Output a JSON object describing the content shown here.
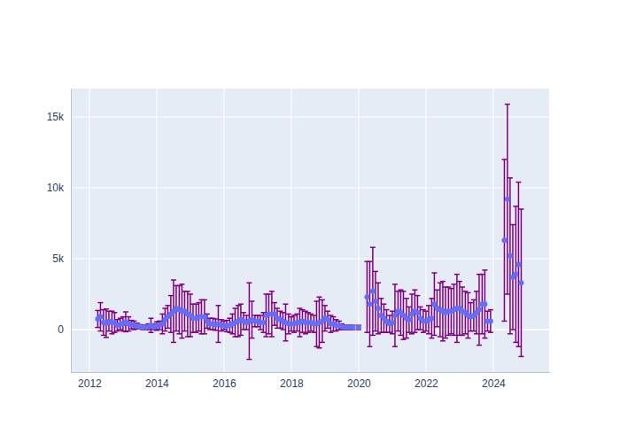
{
  "chart_data": {
    "type": "scatter",
    "x": [
      2012.25,
      2012.33,
      2012.42,
      2012.5,
      2012.58,
      2012.67,
      2012.75,
      2012.83,
      2012.92,
      2013.0,
      2013.08,
      2013.17,
      2013.25,
      2013.33,
      2013.42,
      2013.5,
      2013.58,
      2013.67,
      2013.75,
      2013.83,
      2013.92,
      2014.0,
      2014.08,
      2014.17,
      2014.25,
      2014.33,
      2014.42,
      2014.5,
      2014.58,
      2014.67,
      2014.75,
      2014.83,
      2014.92,
      2015.0,
      2015.08,
      2015.17,
      2015.25,
      2015.33,
      2015.42,
      2015.5,
      2015.58,
      2015.67,
      2015.75,
      2015.83,
      2015.92,
      2016.0,
      2016.08,
      2016.17,
      2016.25,
      2016.33,
      2016.42,
      2016.5,
      2016.58,
      2016.67,
      2016.75,
      2016.83,
      2016.92,
      2017.0,
      2017.08,
      2017.17,
      2017.25,
      2017.33,
      2017.42,
      2017.5,
      2017.58,
      2017.67,
      2017.75,
      2017.83,
      2017.92,
      2018.0,
      2018.08,
      2018.17,
      2018.25,
      2018.33,
      2018.42,
      2018.5,
      2018.58,
      2018.67,
      2018.75,
      2018.83,
      2018.92,
      2019.0,
      2019.08,
      2019.17,
      2019.25,
      2019.33,
      2019.42,
      2019.5,
      2019.58,
      2019.67,
      2019.75,
      2019.83,
      2020.0,
      2020.25,
      2020.33,
      2020.42,
      2020.5,
      2020.58,
      2020.67,
      2020.75,
      2020.83,
      2020.92,
      2021.0,
      2021.08,
      2021.17,
      2021.25,
      2021.33,
      2021.42,
      2021.5,
      2021.58,
      2021.67,
      2021.75,
      2021.83,
      2021.92,
      2022.0,
      2022.08,
      2022.17,
      2022.25,
      2022.33,
      2022.42,
      2022.5,
      2022.58,
      2022.67,
      2022.75,
      2022.83,
      2022.92,
      2023.0,
      2023.08,
      2023.17,
      2023.25,
      2023.33,
      2023.42,
      2023.5,
      2023.58,
      2023.67,
      2023.75,
      2023.83,
      2023.92,
      2024.33,
      2024.42,
      2024.5,
      2024.58,
      2024.67,
      2024.75,
      2024.83
    ],
    "series": [
      {
        "color": "#636efa",
        "marker": "circle",
        "values": [
          750,
          900,
          500,
          450,
          600,
          500,
          500,
          300,
          400,
          400,
          550,
          400,
          350,
          300,
          250,
          200,
          150,
          150,
          200,
          300,
          200,
          250,
          300,
          400,
          700,
          900,
          1100,
          1300,
          1500,
          1400,
          1300,
          1300,
          1100,
          1000,
          800,
          800,
          900,
          900,
          900,
          600,
          400,
          400,
          350,
          400,
          300,
          300,
          250,
          300,
          400,
          500,
          600,
          700,
          600,
          500,
          600,
          700,
          600,
          600,
          500,
          500,
          1000,
          1100,
          1100,
          1100,
          800,
          700,
          600,
          500,
          400,
          400,
          400,
          500,
          500,
          600,
          500,
          500,
          500,
          400,
          400,
          500,
          600,
          800,
          700,
          400,
          400,
          300,
          300,
          200,
          150,
          150,
          150,
          150,
          150,
          2300,
          1800,
          2700,
          2000,
          1500,
          1000,
          800,
          600,
          400,
          500,
          1000,
          1300,
          1200,
          1000,
          800,
          700,
          1100,
          1300,
          1200,
          800,
          600,
          600,
          700,
          800,
          1800,
          1500,
          1400,
          1300,
          1200,
          1300,
          1300,
          1400,
          1500,
          1500,
          1300,
          1200,
          1000,
          900,
          1000,
          1200,
          1400,
          1800,
          1800,
          600,
          600,
          6300,
          9200,
          5200,
          3700,
          3900,
          4600,
          3300
        ],
        "error": [
          600,
          1000,
          900,
          1000,
          700,
          800,
          700,
          400,
          400,
          500,
          700,
          500,
          300,
          300,
          200,
          150,
          150,
          150,
          200,
          500,
          200,
          300,
          300,
          700,
          800,
          800,
          1300,
          2200,
          1600,
          1700,
          1900,
          1400,
          1600,
          1500,
          1000,
          1000,
          1000,
          1200,
          1200,
          500,
          400,
          400,
          400,
          1300,
          400,
          300,
          400,
          500,
          700,
          1000,
          1100,
          1100,
          600,
          500,
          2700,
          1300,
          400,
          400,
          500,
          700,
          1500,
          1400,
          1600,
          800,
          700,
          600,
          600,
          1300,
          700,
          500,
          600,
          600,
          1000,
          800,
          800,
          700,
          600,
          600,
          1600,
          1800,
          1500,
          900,
          600,
          600,
          500,
          400,
          300,
          200,
          150,
          150,
          150,
          150,
          150,
          2500,
          3000,
          3100,
          2100,
          1800,
          1200,
          1000,
          800,
          600,
          800,
          2200,
          1400,
          1600,
          1700,
          1400,
          900,
          1400,
          1500,
          1200,
          800,
          800,
          700,
          1000,
          1400,
          2200,
          1300,
          1900,
          2100,
          1800,
          1700,
          1600,
          1800,
          2400,
          1900,
          1700,
          1500,
          1600,
          1000,
          1100,
          1500,
          2500,
          2100,
          2400,
          700,
          800,
          5700,
          6700,
          5500,
          3700,
          4800,
          5800,
          5200
        ]
      }
    ],
    "xlim": [
      2011.45,
      2025.66
    ],
    "xticks": [
      2012,
      2014,
      2016,
      2018,
      2020,
      2022,
      2024
    ],
    "ylim": [
      -3000,
      17000
    ],
    "yticks": [
      0,
      {
        "value": 5000,
        "label": "5k"
      },
      {
        "value": 10000,
        "label": "10k"
      },
      {
        "value": 15000,
        "label": "15k"
      }
    ],
    "grid": true
  }
}
